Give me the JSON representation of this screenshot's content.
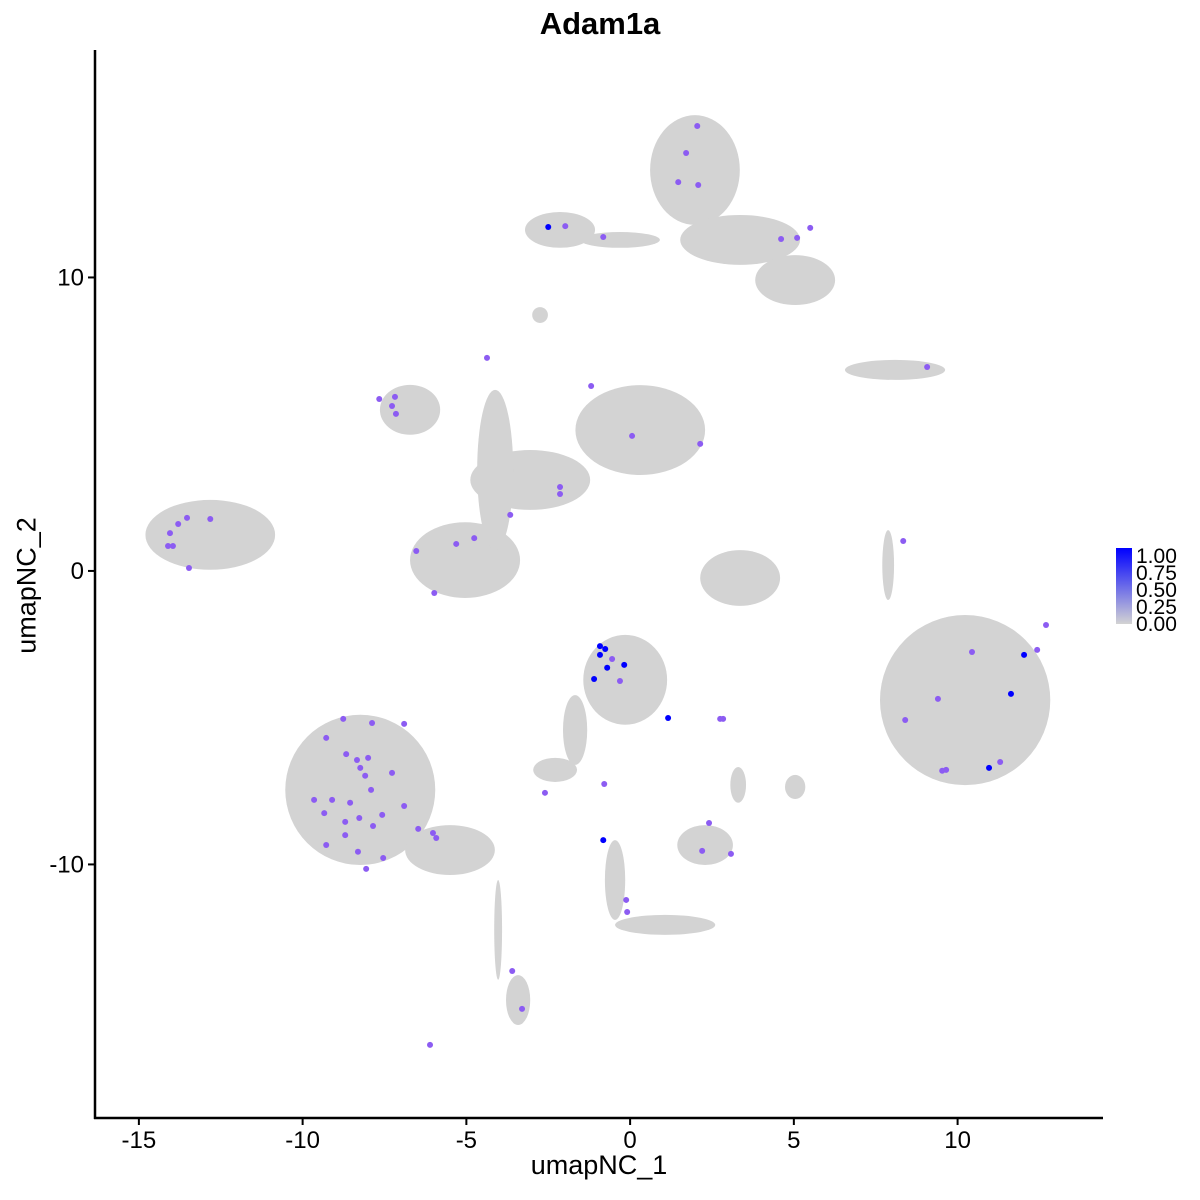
{
  "chart_data": {
    "type": "scatter",
    "title": "Adam1a",
    "xlabel": "umapNC_1",
    "ylabel": "umapNC_2",
    "xlim": [
      -16.34,
      14.44
    ],
    "ylim": [
      -18.64,
      17.75
    ],
    "x_ticks": [
      -15,
      -10,
      -5,
      0,
      5,
      10
    ],
    "y_ticks": [
      -10,
      0,
      10
    ],
    "x_tick_labels": [
      "-15",
      "-10",
      "-5",
      "0",
      "5",
      "10"
    ],
    "y_tick_labels": [
      "-10",
      "0",
      "10"
    ],
    "grid": false,
    "legend": {
      "position": "right",
      "labels": [
        "1.00",
        "0.75",
        "0.50",
        "0.25",
        "0.00"
      ],
      "low_color": "#d3d3d3",
      "high_color": "#0000ff"
    },
    "background_cell_regions": [
      [
        1.98,
        13.66,
        1.37,
        1.87
      ],
      [
        3.36,
        11.28,
        1.83,
        0.85
      ],
      [
        5.04,
        9.91,
        1.22,
        0.85
      ],
      [
        -2.14,
        11.62,
        1.07,
        0.61
      ],
      [
        -0.31,
        11.28,
        1.22,
        0.27
      ],
      [
        -2.75,
        8.72,
        0.24,
        0.27
      ],
      [
        8.09,
        6.85,
        1.53,
        0.34
      ],
      [
        0.31,
        4.8,
        1.98,
        1.53
      ],
      [
        -3.05,
        3.1,
        1.83,
        1.02
      ],
      [
        -6.72,
        5.49,
        0.92,
        0.85
      ],
      [
        -5.04,
        0.37,
        1.68,
        1.29
      ],
      [
        -4.12,
        3.44,
        0.55,
        2.73
      ],
      [
        -12.82,
        1.23,
        1.98,
        1.19
      ],
      [
        3.36,
        -0.24,
        1.22,
        0.95
      ],
      [
        10.23,
        -4.4,
        2.6,
        2.9
      ],
      [
        7.88,
        0.2,
        0.18,
        1.19
      ],
      [
        -0.15,
        -3.71,
        1.28,
        1.53
      ],
      [
        -2.29,
        -6.78,
        0.67,
        0.41
      ],
      [
        -1.68,
        -5.42,
        0.37,
        1.19
      ],
      [
        -8.24,
        -7.46,
        2.29,
        2.56
      ],
      [
        -5.5,
        -9.51,
        1.37,
        0.85
      ],
      [
        -3.42,
        -14.62,
        0.37,
        0.85
      ],
      [
        -4.03,
        -12.23,
        0.12,
        1.7
      ],
      [
        2.29,
        -9.34,
        0.85,
        0.68
      ],
      [
        1.07,
        -12.06,
        1.53,
        0.34
      ],
      [
        -0.46,
        -10.53,
        0.31,
        1.36
      ],
      [
        5.04,
        -7.36,
        0.31,
        0.41
      ],
      [
        3.3,
        -7.29,
        0.24,
        0.61
      ]
    ],
    "expressing_cells": {
      "x": [
        -2.5,
        -0.92,
        -0.76,
        -0.92,
        -0.7,
        -0.18,
        -1.1,
        1.16,
        -0.82,
        12.03,
        11.63,
        10.96,
        2.05,
        1.71,
        1.47,
        2.08,
        -1.98,
        -0.82,
        4.61,
        5.1,
        5.5,
        -4.37,
        -1.19,
        -7.66,
        -7.18,
        -7.27,
        -7.15,
        0.06,
        2.14,
        -2.14,
        -2.14,
        -3.66,
        -4.76,
        -5.31,
        -6.53,
        -5.98,
        -13.53,
        -13.8,
        -12.82,
        -14.05,
        -14.11,
        -13.96,
        -13.47,
        9.07,
        8.34,
        10.44,
        12.43,
        12.7,
        9.4,
        8.4,
        9.53,
        9.65,
        11.3,
        -0.31,
        -0.55,
        2.75,
        2.84,
        -2.6,
        -0.79,
        2.41,
        2.2,
        3.08,
        -0.12,
        -0.09,
        -3.6,
        -3.3,
        -6.11,
        -8.76,
        -7.88,
        -9.28,
        -8.67,
        -8.34,
        -8.24,
        -8.0,
        -7.27,
        -8.09,
        -7.91,
        -9.65,
        -9.1,
        -8.55,
        -6.9,
        -9.34,
        -7.57,
        -8.7,
        -8.27,
        -7.85,
        -8.7,
        -6.47,
        -6.02,
        -5.92,
        -9.28,
        -8.31,
        -8.06,
        -7.54,
        -6.9
      ],
      "y": [
        11.72,
        -2.56,
        -2.66,
        -2.86,
        -3.3,
        -3.2,
        -3.68,
        -5.01,
        -9.17,
        -2.86,
        -4.19,
        -6.71,
        15.16,
        14.24,
        13.25,
        13.15,
        11.75,
        11.38,
        11.31,
        11.35,
        11.69,
        7.26,
        6.3,
        5.86,
        5.93,
        5.62,
        5.35,
        4.6,
        4.33,
        2.86,
        2.62,
        1.91,
        1.12,
        0.92,
        0.68,
        -0.75,
        1.81,
        1.6,
        1.77,
        1.29,
        0.85,
        0.85,
        0.1,
        6.95,
        1.02,
        -2.76,
        -2.69,
        -1.84,
        -4.36,
        -5.08,
        -6.81,
        -6.78,
        -6.51,
        -3.75,
        -3.0,
        -5.04,
        -5.04,
        -7.56,
        -7.26,
        -8.59,
        -9.54,
        -9.64,
        -11.21,
        -11.62,
        -13.63,
        -14.92,
        -16.15,
        -5.04,
        -5.18,
        -5.69,
        -6.24,
        -6.44,
        -6.71,
        -6.37,
        -6.88,
        -6.98,
        -7.46,
        -7.8,
        -7.8,
        -7.9,
        -8.01,
        -8.25,
        -8.31,
        -8.55,
        -8.42,
        -8.69,
        -9.0,
        -8.79,
        -8.93,
        -9.1,
        -9.34,
        -9.57,
        -10.15,
        -9.78,
        -5.21
      ],
      "expression_count_high": 12,
      "high_value": 1.0,
      "other_value": 0.5
    }
  }
}
